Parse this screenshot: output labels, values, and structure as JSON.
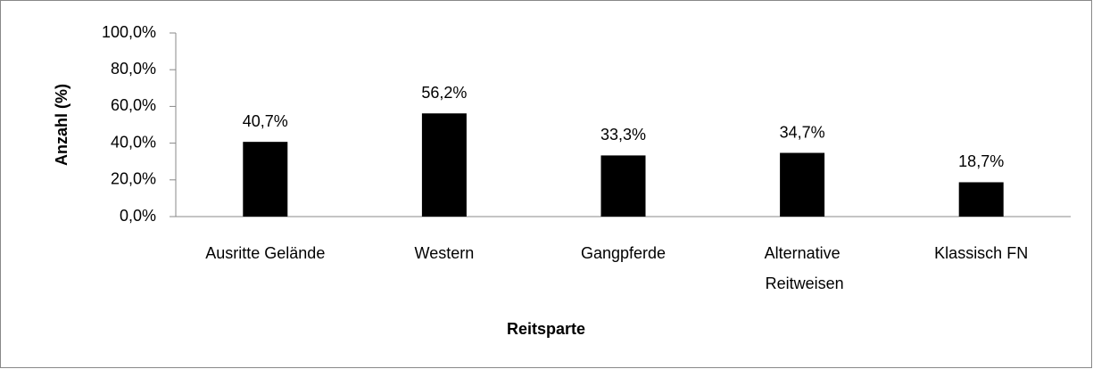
{
  "chart_data": {
    "type": "bar",
    "x_label": "Reitsparte",
    "y_label": "Anzahl (%)",
    "categories": [
      "Ausritte Gelände",
      "Western",
      "Gangpferde",
      "Alternative Reitweisen",
      "Klassisch FN"
    ],
    "values": [
      40.7,
      56.2,
      33.3,
      34.7,
      18.7
    ],
    "value_labels": [
      "40,7%",
      "56,2%",
      "33,3%",
      "34,7%",
      "18,7%"
    ],
    "color": "#000000",
    "ylim": [
      0,
      100
    ],
    "yticks": [
      {
        "value": 0,
        "label": "0,0%"
      },
      {
        "value": 20,
        "label": "20,0%"
      },
      {
        "value": 40,
        "label": "40,0%"
      },
      {
        "value": 60,
        "label": "60,0%"
      },
      {
        "value": 80,
        "label": "80,0%"
      },
      {
        "value": 100,
        "label": "100,0%"
      }
    ],
    "grid": false
  }
}
